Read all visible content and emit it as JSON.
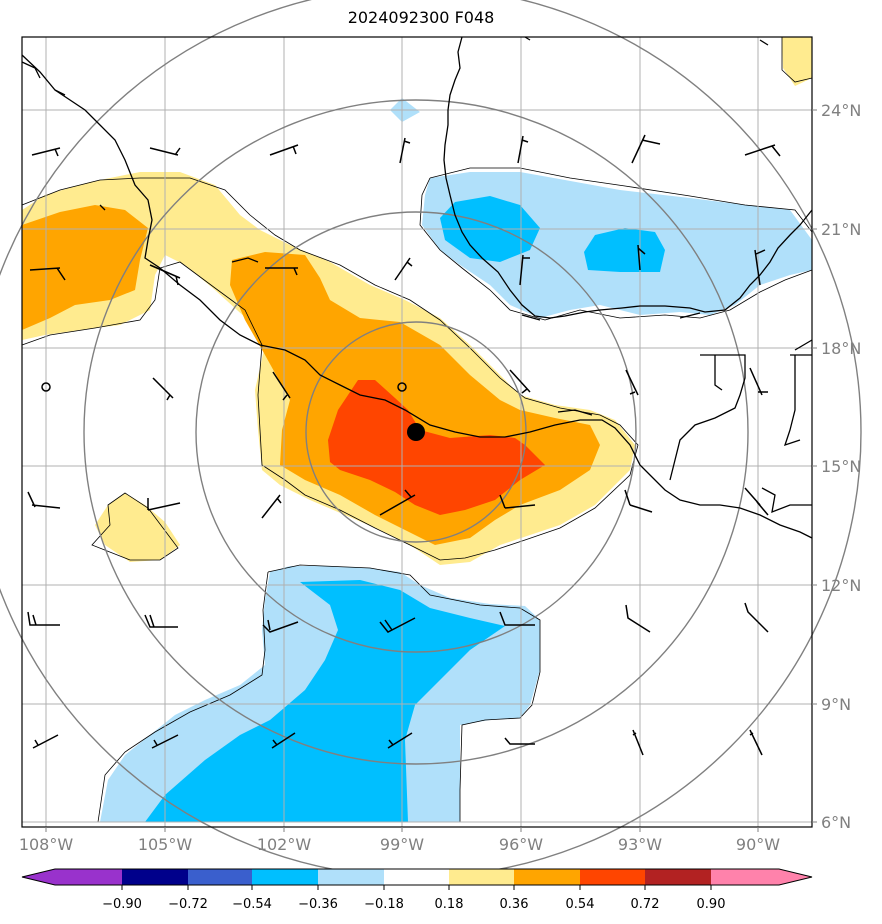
{
  "title": "2024092300 F048",
  "colors": {
    "pos1": "#ffeb8f",
    "pos2": "#ffa500",
    "pos3": "#ff4500",
    "pos4": "#b22222",
    "pos5": "#ff82ab",
    "neg1": "#b0e0fa",
    "neg2": "#00bfff",
    "neg3": "#3a5fcd",
    "neg4": "#00008b",
    "neg5": "#9932cc",
    "grid": "#b0b0b0",
    "range_ring": "#808080",
    "coast": "#000000"
  },
  "lon_labels": [
    "108°W",
    "105°W",
    "102°W",
    "99°W",
    "96°W",
    "93°W",
    "90°W"
  ],
  "lat_labels": [
    "24°N",
    "21°N",
    "18°N",
    "15°N",
    "12°N",
    "9°N",
    "6°N"
  ],
  "colorbar": {
    "ticks": [
      "−0.90",
      "−0.72",
      "−0.54",
      "−0.36",
      "−0.18",
      "0.18",
      "0.36",
      "0.54",
      "0.72",
      "0.90"
    ],
    "colors": [
      "#9932cc",
      "#00008b",
      "#3a5fcd",
      "#00bfff",
      "#b0e0fa",
      "#ffffff",
      "#ffeb8f",
      "#ffa500",
      "#ff4500",
      "#b22222",
      "#ff82ab"
    ]
  },
  "storm_center": {
    "lon": -98.6,
    "lat": 15.8
  }
}
